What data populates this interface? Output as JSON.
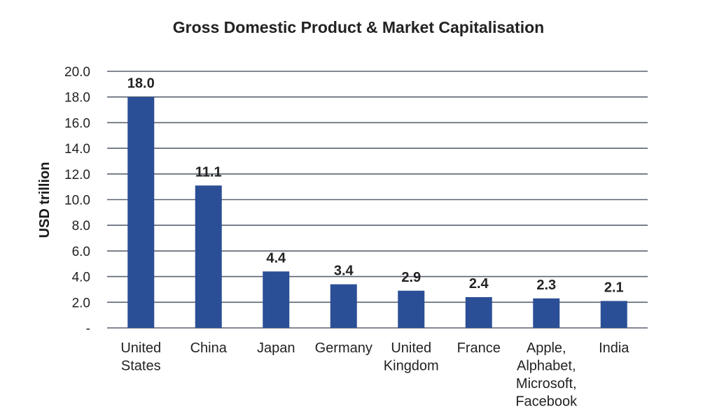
{
  "chart_data": {
    "type": "bar",
    "title": "Gross Domestic Product & Market Capitalisation",
    "xlabel": "",
    "ylabel": "USD trillion",
    "ylim": [
      0,
      20
    ],
    "yticks": [
      0,
      2,
      4,
      6,
      8,
      10,
      12,
      14,
      16,
      18,
      20
    ],
    "ytick_labels": [
      "-",
      "2.0",
      "4.0",
      "6.0",
      "8.0",
      "10.0",
      "12.0",
      "14.0",
      "16.0",
      "18.0",
      "20.0"
    ],
    "grid": true,
    "legend": "none",
    "bar_color": "#2b4f96",
    "categories": [
      [
        "United",
        "States"
      ],
      [
        "China"
      ],
      [
        "Japan"
      ],
      [
        "Germany"
      ],
      [
        "United",
        "Kingdom"
      ],
      [
        "France"
      ],
      [
        "Apple,",
        "Alphabet,",
        "Microsoft,",
        "Facebook"
      ],
      [
        "India"
      ]
    ],
    "values": [
      18.0,
      11.1,
      4.4,
      3.4,
      2.9,
      2.4,
      2.3,
      2.1
    ],
    "value_labels": [
      "18.0",
      "11.1",
      "4.4",
      "3.4",
      "2.9",
      "2.4",
      "2.3",
      "2.1"
    ]
  }
}
